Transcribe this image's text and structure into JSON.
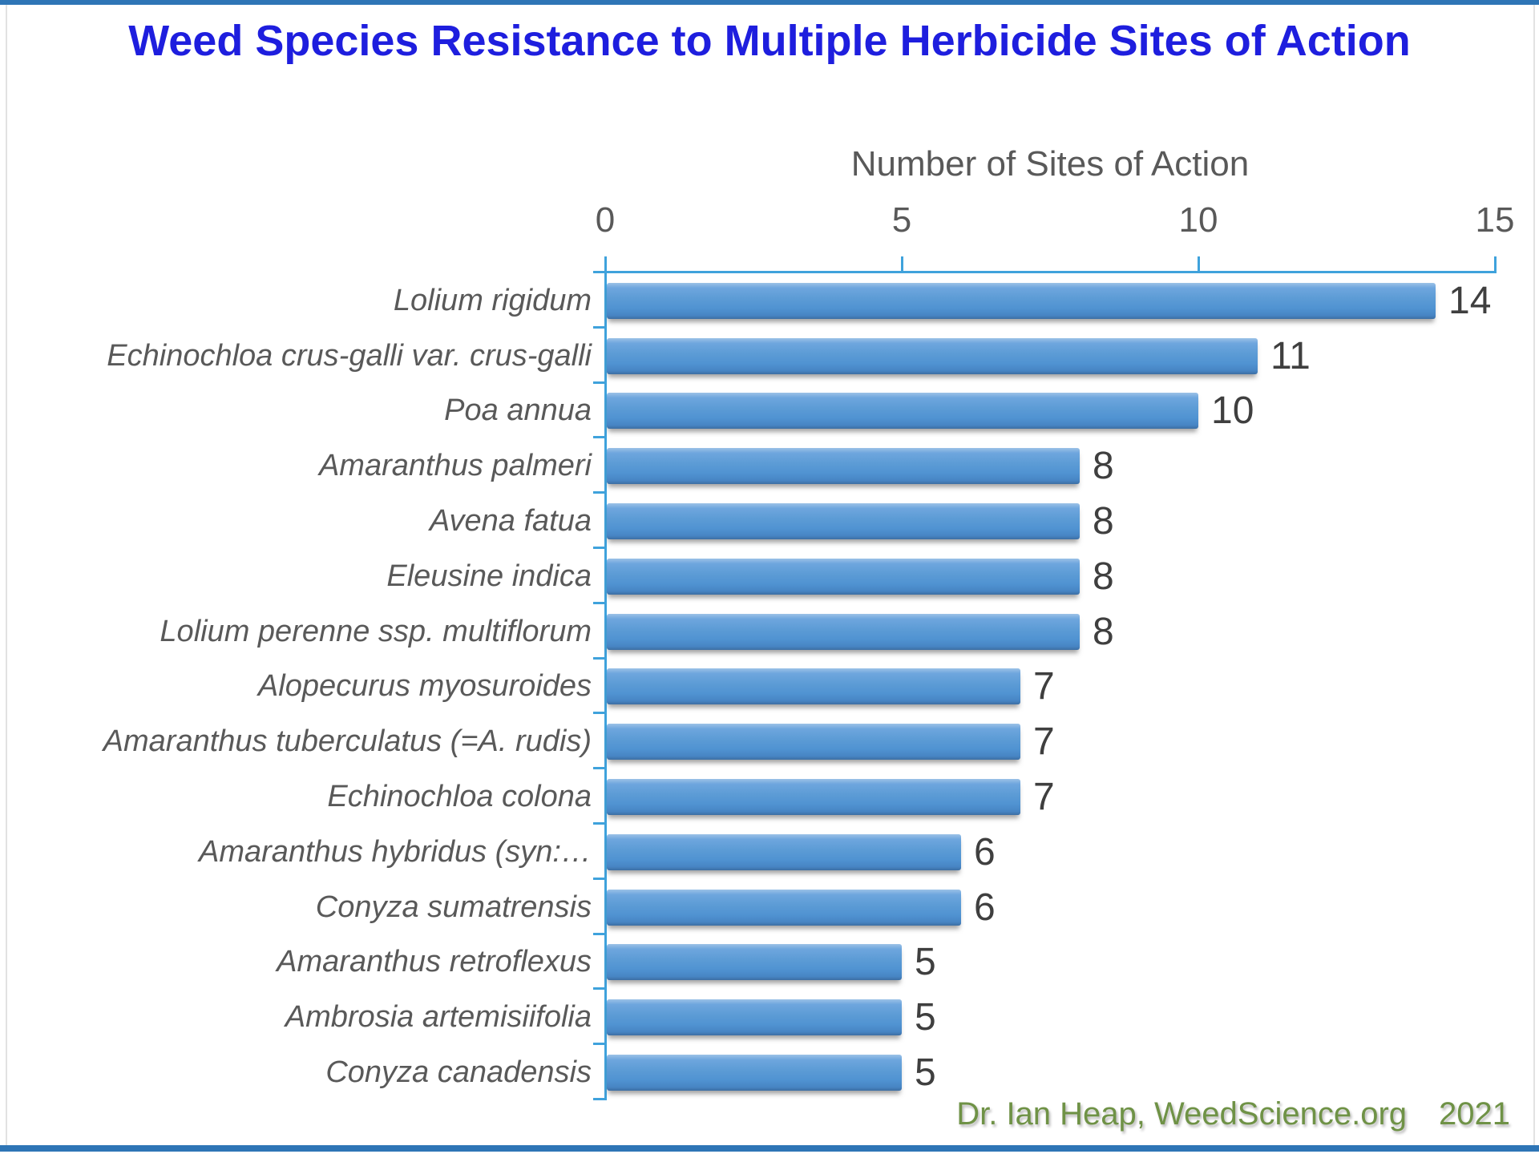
{
  "title": "Weed Species Resistance to Multiple Herbicide Sites of Action",
  "chart_data": {
    "type": "bar",
    "orientation": "horizontal",
    "axis_title": "Number of Sites of Action",
    "axis_position": "top",
    "xlim": [
      0,
      15
    ],
    "x_ticks": [
      0,
      5,
      10,
      15
    ],
    "grid": false,
    "data_labels": true,
    "categories": [
      "Lolium rigidum",
      "Echinochloa crus-galli var. crus-galli",
      "Poa annua",
      "Amaranthus palmeri",
      "Avena fatua",
      "Eleusine indica",
      "Lolium perenne ssp. multiflorum",
      "Alopecurus myosuroides",
      "Amaranthus tuberculatus (=A. rudis)",
      "Echinochloa colona",
      "Amaranthus hybridus (syn:…",
      "Conyza sumatrensis",
      "Amaranthus retroflexus",
      "Ambrosia artemisiifolia",
      "Conyza canadensis"
    ],
    "values": [
      14,
      11,
      10,
      8,
      8,
      8,
      8,
      7,
      7,
      7,
      6,
      6,
      5,
      5,
      5
    ],
    "bar_color": "#5b9bd5",
    "axis_color": "#3fa2dc",
    "label_style": "italic"
  },
  "footer": {
    "credit": "Dr. Ian Heap, WeedScience.org",
    "year": "2021"
  },
  "colors": {
    "title_blue": "#1e1ede",
    "text_gray": "#595959",
    "value_gray": "#3f3f3f",
    "credit_green": "#6f9246",
    "frame_blue": "#2e75b6"
  }
}
